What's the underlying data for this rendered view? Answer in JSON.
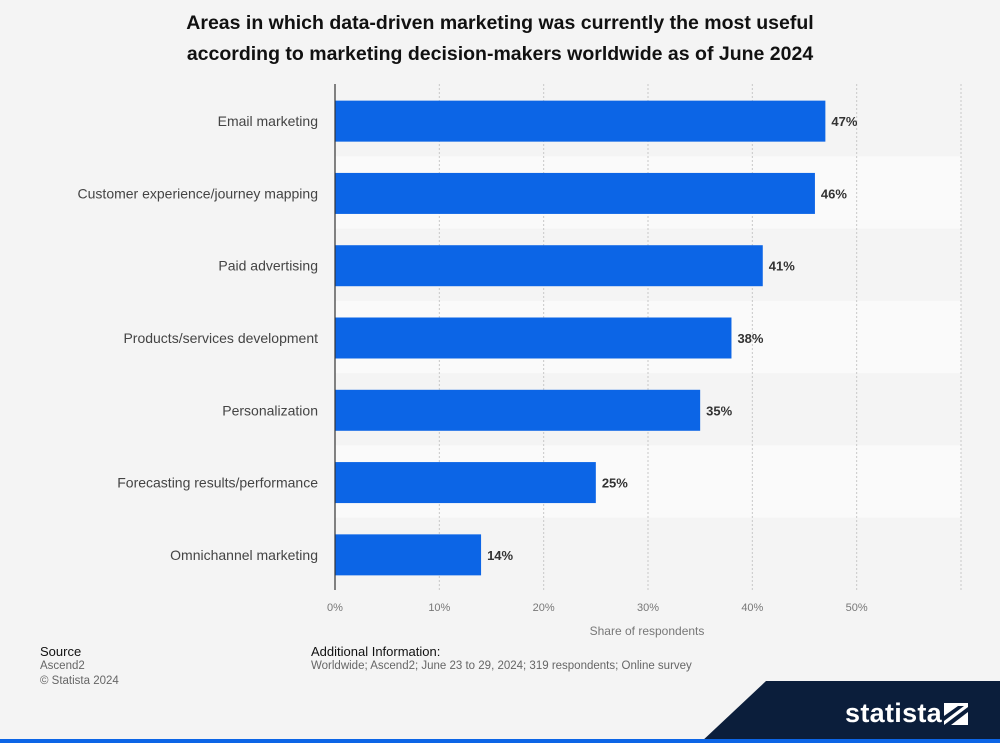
{
  "chart_data": {
    "type": "bar",
    "orientation": "horizontal",
    "title_lines": [
      "Areas in which data-driven marketing was currently the most useful",
      "according to marketing decision-makers worldwide as of June 2024"
    ],
    "categories": [
      "Email marketing",
      "Customer experience/journey mapping",
      "Paid advertising",
      "Products/services development",
      "Personalization",
      "Forecasting results/performance",
      "Omnichannel marketing"
    ],
    "values": [
      47,
      46,
      41,
      38,
      35,
      25,
      14
    ],
    "value_suffix": "%",
    "xlabel": "Share of respondents",
    "xlim": [
      0,
      60
    ],
    "xticks": [
      0,
      10,
      20,
      30,
      40,
      50
    ],
    "xtick_labels": [
      "0%",
      "10%",
      "20%",
      "30%",
      "40%",
      "50%"
    ],
    "bar_color": "#0c65e6",
    "grid": true
  },
  "footer": {
    "source_heading": "Source",
    "source_lines": [
      "Ascend2",
      "© Statista 2024"
    ],
    "info_heading": "Additional Information:",
    "info_text": "Worldwide; Ascend2; June 23 to 29, 2024; 319 respondents; Online survey"
  },
  "logo": {
    "text": "statista"
  }
}
